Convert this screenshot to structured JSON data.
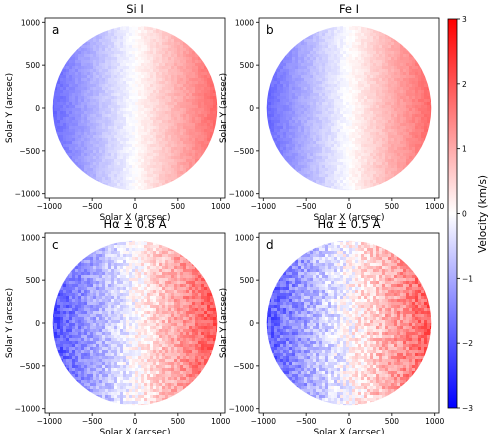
{
  "chart_data": [
    {
      "type": "heatmap",
      "panel_label": "a",
      "title": "Si I",
      "xlabel": "Solar X (arcsec)",
      "ylabel": "Solar Y (arcsec)",
      "xlim": [
        -1050,
        1050
      ],
      "ylim": [
        -1050,
        1050
      ],
      "xticks": [
        -1000,
        -500,
        0,
        500,
        1000
      ],
      "yticks": [
        -1000,
        -500,
        0,
        500,
        1000
      ],
      "disk_radius": 960,
      "velocity_left_limb_kms": -1.8,
      "velocity_right_limb_kms": 1.8,
      "noise_amplitude_kms": 0.12
    },
    {
      "type": "heatmap",
      "panel_label": "b",
      "title": "Fe I",
      "xlabel": "Solar X (arcsec)",
      "ylabel": "Solar Y (arcsec)",
      "xlim": [
        -1050,
        1050
      ],
      "ylim": [
        -1050,
        1050
      ],
      "xticks": [
        -1000,
        -500,
        0,
        500,
        1000
      ],
      "yticks": [
        -1000,
        -500,
        0,
        500,
        1000
      ],
      "disk_radius": 960,
      "velocity_left_limb_kms": -1.8,
      "velocity_right_limb_kms": 1.8,
      "noise_amplitude_kms": 0.12
    },
    {
      "type": "heatmap",
      "panel_label": "c",
      "title": "Hα ± 0.8 Å",
      "xlabel": "Solar X (arcsec)",
      "ylabel": "Solar Y (arcsec)",
      "xlim": [
        -1050,
        1050
      ],
      "ylim": [
        -1050,
        1050
      ],
      "xticks": [
        -1000,
        -500,
        0,
        500,
        1000
      ],
      "yticks": [
        -1000,
        -500,
        0,
        500,
        1000
      ],
      "disk_radius": 960,
      "velocity_left_limb_kms": -2.1,
      "velocity_right_limb_kms": 2.1,
      "noise_amplitude_kms": 0.45
    },
    {
      "type": "heatmap",
      "panel_label": "d",
      "title": "Hα ± 0.5 Å",
      "xlabel": "Solar X (arcsec)",
      "ylabel": "Solar Y (arcsec)",
      "xlim": [
        -1050,
        1050
      ],
      "ylim": [
        -1050,
        1050
      ],
      "xticks": [
        -1000,
        -500,
        0,
        500,
        1000
      ],
      "yticks": [
        -1000,
        -500,
        0,
        500,
        1000
      ],
      "disk_radius": 960,
      "velocity_left_limb_kms": -2.0,
      "velocity_right_limb_kms": 2.0,
      "noise_amplitude_kms": 0.55
    }
  ],
  "colorbar": {
    "label": "Velocity (km/s)",
    "range": [
      -3,
      3
    ],
    "ticks": [
      -3,
      -2,
      -1,
      0,
      1,
      2,
      3
    ],
    "colormap": "bwr",
    "low_color": "#0000ff",
    "mid_color": "#ffffff",
    "high_color": "#ff0000"
  }
}
